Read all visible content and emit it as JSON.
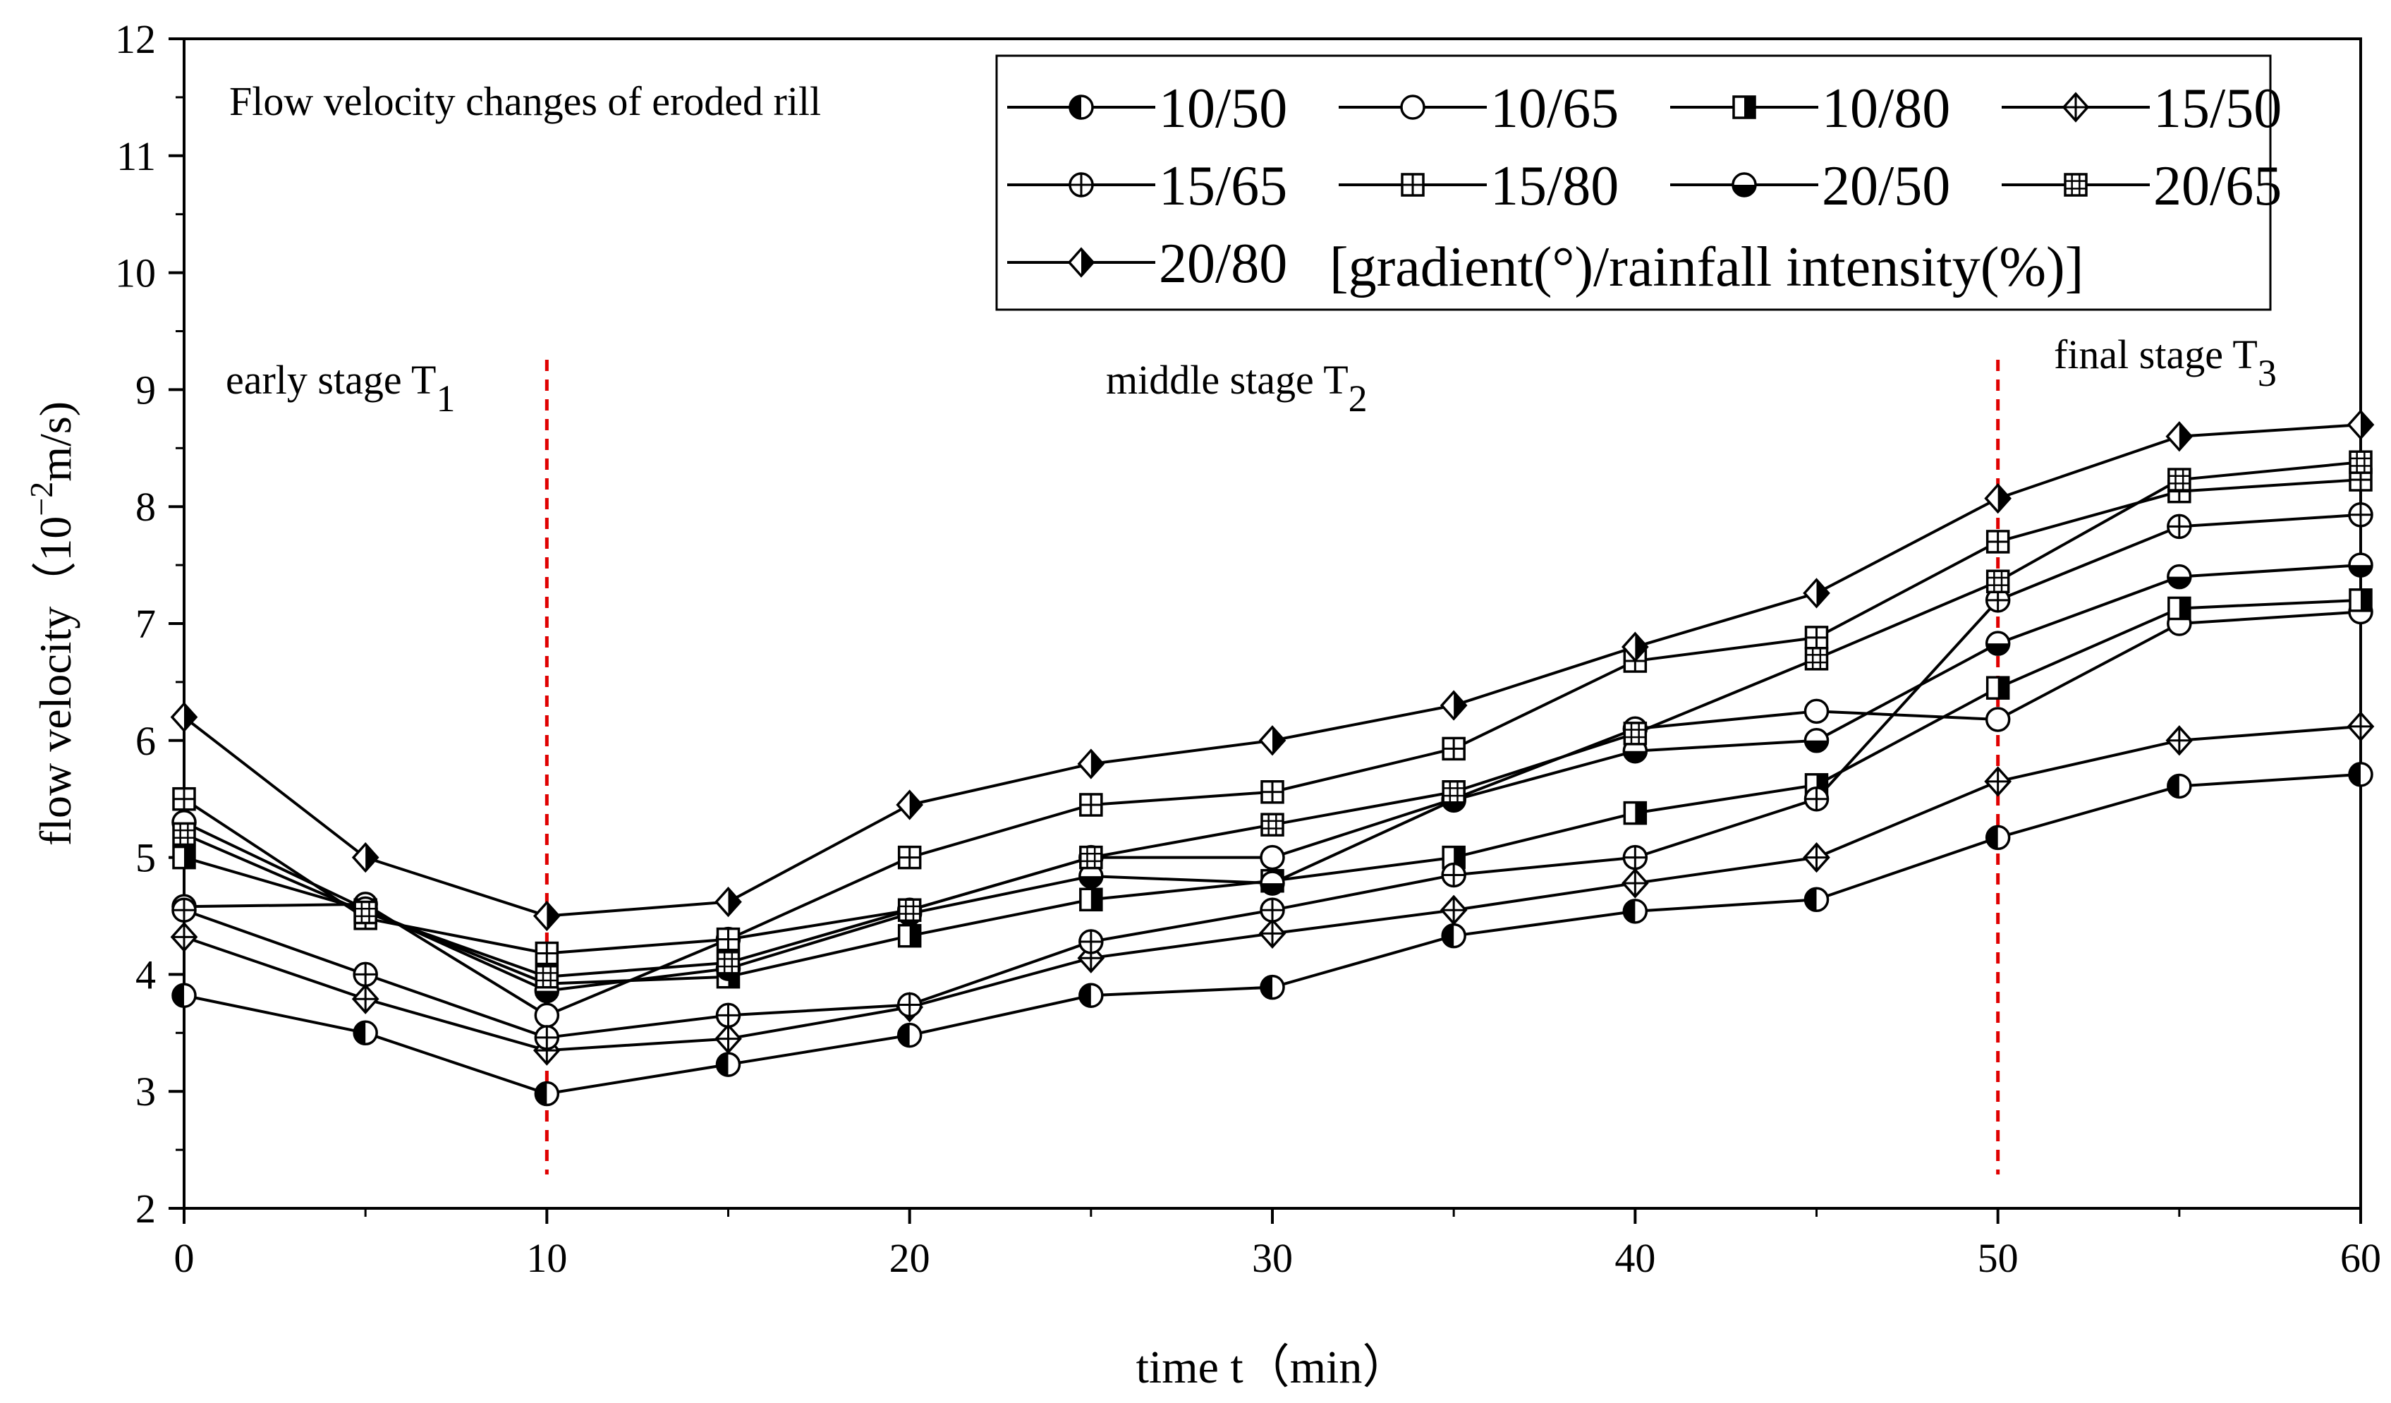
{
  "chart_data": {
    "type": "line",
    "title": "Flow velocity changes of eroded rill",
    "xlabel": "time t（min）",
    "ylabel_main": "flow velocity（10",
    "ylabel_exp": "−2",
    "ylabel_unit": "m/s)",
    "xlim": [
      0,
      60
    ],
    "ylim": [
      2,
      12
    ],
    "x_ticks": [
      "0",
      "10",
      "20",
      "30",
      "40",
      "50",
      "60"
    ],
    "y_ticks": [
      "2",
      "3",
      "4",
      "5",
      "6",
      "7",
      "8",
      "9",
      "10",
      "11",
      "12"
    ],
    "legend_note": "[gradient(°)/rainfall intensity(%)]",
    "x": [
      0,
      5,
      10,
      15,
      20,
      25,
      30,
      35,
      40,
      45,
      50,
      55,
      60
    ],
    "series": [
      {
        "name": "10/50",
        "marker": "circle-left-filled",
        "values": [
          3.82,
          3.5,
          2.98,
          3.23,
          3.48,
          3.82,
          3.89,
          4.33,
          4.54,
          4.64,
          5.17,
          5.61,
          5.71
        ]
      },
      {
        "name": "10/65",
        "marker": "circle-open",
        "values": [
          4.58,
          4.6,
          3.65,
          4.3,
          4.55,
          5.0,
          5.0,
          5.5,
          6.1,
          6.25,
          6.18,
          7.0,
          7.1
        ]
      },
      {
        "name": "10/80",
        "marker": "square-right-filled",
        "values": [
          5.0,
          4.55,
          3.92,
          3.98,
          4.33,
          4.64,
          4.8,
          5.0,
          5.38,
          5.62,
          6.45,
          7.13,
          7.2
        ]
      },
      {
        "name": "15/50",
        "marker": "diamond-cross",
        "values": [
          4.32,
          3.79,
          3.35,
          3.45,
          3.72,
          4.14,
          4.35,
          4.55,
          4.78,
          5.0,
          5.65,
          6.0,
          6.12
        ]
      },
      {
        "name": "15/65",
        "marker": "circle-cross",
        "values": [
          4.55,
          4.0,
          3.46,
          3.65,
          3.74,
          4.28,
          4.55,
          4.85,
          5.0,
          5.5,
          7.2,
          7.83,
          7.93
        ]
      },
      {
        "name": "15/80",
        "marker": "square-cross",
        "values": [
          5.5,
          4.48,
          4.18,
          4.3,
          5.0,
          5.45,
          5.56,
          5.93,
          6.68,
          6.88,
          7.7,
          8.13,
          8.23
        ]
      },
      {
        "name": "20/50",
        "marker": "circle-bottom-filled",
        "values": [
          5.3,
          4.56,
          3.86,
          4.05,
          4.52,
          4.84,
          4.78,
          5.49,
          5.91,
          6.0,
          6.83,
          7.4,
          7.5
        ]
      },
      {
        "name": "20/65",
        "marker": "square-grid",
        "values": [
          5.2,
          4.53,
          3.98,
          4.1,
          4.55,
          5.0,
          5.28,
          5.56,
          6.06,
          6.7,
          7.36,
          8.23,
          8.38
        ]
      },
      {
        "name": "20/80",
        "marker": "diamond-right-filled",
        "values": [
          6.2,
          5.0,
          4.5,
          4.62,
          5.45,
          5.8,
          6.0,
          6.3,
          6.8,
          7.26,
          8.07,
          8.6,
          8.7
        ]
      }
    ],
    "stage_dividers": [
      10,
      50
    ],
    "stage_labels": [
      {
        "text": "early stage T",
        "sub": "1"
      },
      {
        "text": "middle stage T",
        "sub": "2"
      },
      {
        "text": "final stage T",
        "sub": "3"
      }
    ],
    "colors": {
      "line": "#000000",
      "divider": "#e00000",
      "background": "#ffffff"
    }
  }
}
